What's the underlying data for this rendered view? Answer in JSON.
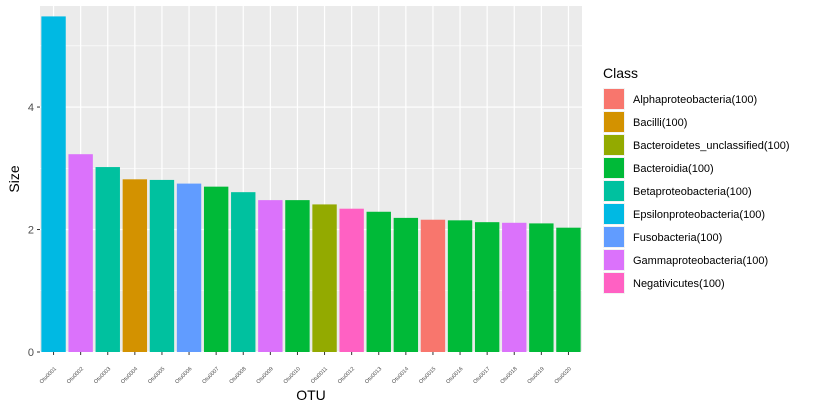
{
  "chart_data": {
    "type": "bar",
    "xlabel": "OTU",
    "ylabel": "Size",
    "ylim": [
      0,
      5.65
    ],
    "yticks": [
      0,
      2,
      4
    ],
    "grid": true,
    "legend_position": "right",
    "legend_title": "Class",
    "classes": [
      {
        "name": "Alphaproteobacteria(100)",
        "color": "#F8766D"
      },
      {
        "name": "Bacilli(100)",
        "color": "#D39200"
      },
      {
        "name": "Bacteroidetes_unclassified(100)",
        "color": "#93AA00"
      },
      {
        "name": "Bacteroidia(100)",
        "color": "#00BA38"
      },
      {
        "name": "Betaproteobacteria(100)",
        "color": "#00C19F"
      },
      {
        "name": "Epsilonproteobacteria(100)",
        "color": "#00B9E3"
      },
      {
        "name": "Fusobacteria(100)",
        "color": "#619CFF"
      },
      {
        "name": "Gammaproteobacteria(100)",
        "color": "#DB72FB"
      },
      {
        "name": "Negativicutes(100)",
        "color": "#FF61C3"
      }
    ],
    "categories": [
      "Otu0001",
      "Otu0002",
      "Otu0003",
      "Otu0004",
      "Otu0005",
      "Otu0006",
      "Otu0007",
      "Otu0008",
      "Otu0009",
      "Otu0010",
      "Otu0011",
      "Otu0012",
      "Otu0013",
      "Otu0014",
      "Otu0015",
      "Otu0016",
      "Otu0017",
      "Otu0018",
      "Otu0019",
      "Otu0020"
    ],
    "values": [
      5.48,
      3.23,
      3.02,
      2.82,
      2.81,
      2.75,
      2.7,
      2.61,
      2.48,
      2.48,
      2.41,
      2.34,
      2.29,
      2.19,
      2.16,
      2.15,
      2.12,
      2.11,
      2.1,
      2.03
    ],
    "class_index": [
      5,
      7,
      4,
      1,
      4,
      6,
      3,
      4,
      7,
      3,
      2,
      8,
      3,
      3,
      0,
      3,
      3,
      7,
      3,
      3
    ]
  }
}
